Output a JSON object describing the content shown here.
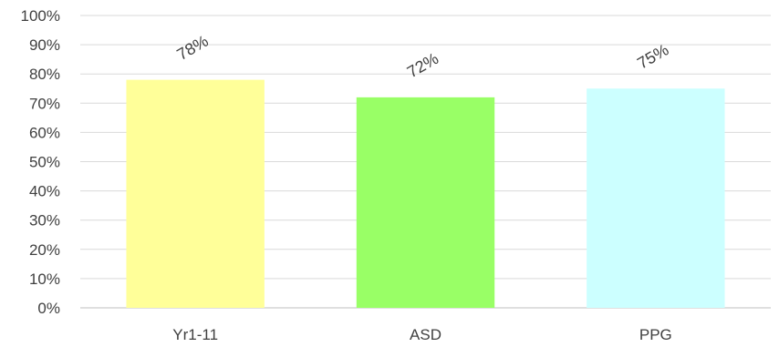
{
  "chart_data": {
    "type": "bar",
    "categories": [
      "Yr1-11",
      "ASD",
      "PPG"
    ],
    "values": [
      78,
      72,
      75
    ],
    "data_labels": [
      "78%",
      "72%",
      "75%"
    ],
    "bar_colors": [
      "#ffff99",
      "#99ff66",
      "#ccffff"
    ],
    "ylim": [
      0,
      100
    ],
    "yticks": [
      0,
      10,
      20,
      30,
      40,
      50,
      60,
      70,
      80,
      90,
      100
    ],
    "ytick_labels": [
      "0%",
      "10%",
      "20%",
      "30%",
      "40%",
      "50%",
      "60%",
      "70%",
      "80%",
      "90%",
      "100%"
    ],
    "grid": true,
    "legend": "none",
    "title": "",
    "xlabel": "",
    "ylabel": ""
  }
}
